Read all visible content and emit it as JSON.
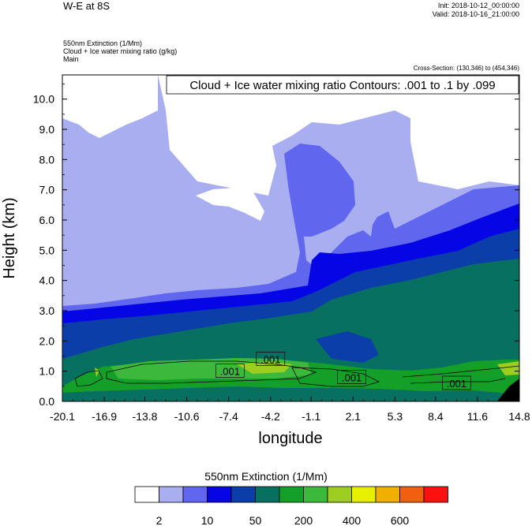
{
  "header": {
    "title": "W-E at 8S",
    "init": "Init: 2018-10-12_00:00:00",
    "valid": "Valid: 2018-10-16_21:00:00",
    "field1": "550nm Extinction   (1/Mm)",
    "field2": "Cloud + Ice water mixing ratio   (g/kg)",
    "field3": "Main",
    "cross_section": "Cross-Section: (130,346) to (454,346)"
  },
  "chart_data": {
    "type": "contour",
    "title": "",
    "contour_label": "Cloud + Ice water mixing ratio Contours: .001 to .1 by .099",
    "xlabel": "longitude",
    "ylabel": "Height (km)",
    "xlim": [
      -20.1,
      14.8
    ],
    "ylim": [
      0.0,
      10.8
    ],
    "x_ticks": [
      "-20.1",
      "-16.9",
      "-13.8",
      "-10.6",
      "-7.4",
      "-4.2",
      "-1.1",
      "2.1",
      "5.3",
      "8.4",
      "11.6",
      "14.8"
    ],
    "y_ticks": [
      "0.0",
      "1.0",
      "2.0",
      "3.0",
      "4.0",
      "5.0",
      "6.0",
      "7.0",
      "8.0",
      "9.0",
      "10.0"
    ],
    "contour_labels": [
      {
        "text": ".001",
        "x": -7.3,
        "y": 1.0
      },
      {
        "text": ".001",
        "x": -4.2,
        "y": 1.4
      },
      {
        "text": ".001",
        "x": 2.0,
        "y": 0.8
      },
      {
        "text": ".001",
        "x": 10.0,
        "y": 0.6
      }
    ],
    "colorbar": {
      "title": "550nm Extinction  (1/Mm)",
      "colors": [
        "#ffffff",
        "#a8aef0",
        "#6066ee",
        "#0505e6",
        "#0b3ea8",
        "#087060",
        "#14a028",
        "#3cb93c",
        "#9ccd20",
        "#e8f000",
        "#f0b000",
        "#f06010",
        "#ff1010"
      ],
      "tick_labels": [
        "2",
        "10",
        "50",
        "200",
        "400",
        "600"
      ]
    }
  }
}
